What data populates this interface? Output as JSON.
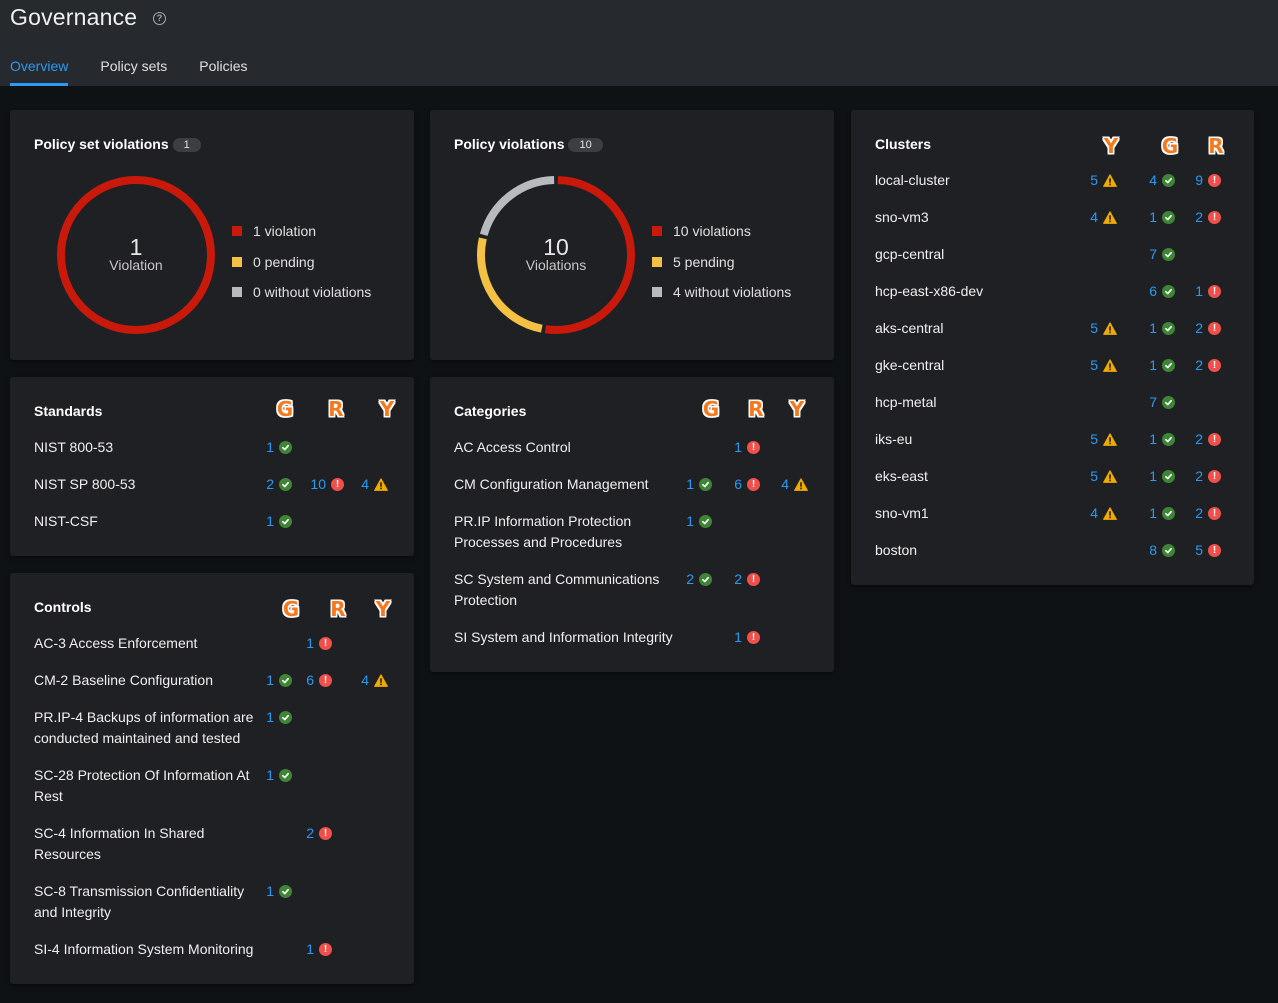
{
  "header": {
    "title": "Governance",
    "help_icon": "question-circle-icon",
    "tabs": [
      {
        "label": "Overview",
        "active": true
      },
      {
        "label": "Policy sets",
        "active": false
      },
      {
        "label": "Policies",
        "active": false
      }
    ]
  },
  "colors": {
    "violation": "#c9190b",
    "pending": "#f4c145",
    "without": "#b8bbbe",
    "link": "#2b9af3",
    "ok": "#3e8635",
    "err": "#f0504b",
    "warn": "#f0ab00"
  },
  "chart_data": [
    {
      "type": "pie",
      "title": "Policy set violations",
      "badge": "1",
      "center_value": "1",
      "center_label": "Violation",
      "categories": [
        "violation",
        "pending",
        "without violations"
      ],
      "values": [
        1,
        0,
        0
      ],
      "legend": [
        "1 violation",
        "0 pending",
        "0 without violations"
      ]
    },
    {
      "type": "pie",
      "title": "Policy violations",
      "badge": "10",
      "center_value": "10",
      "center_label": "Violations",
      "categories": [
        "violations",
        "pending",
        "without violations"
      ],
      "values": [
        10,
        5,
        4
      ],
      "legend": [
        "10 violations",
        "5 pending",
        "4 without violations"
      ]
    }
  ],
  "standards": {
    "title": "Standards",
    "columns": [
      "G",
      "R",
      "Y"
    ],
    "rows": [
      {
        "label": "NIST 800-53",
        "g": "1",
        "r": null,
        "y": null
      },
      {
        "label": "NIST SP 800-53",
        "g": "2",
        "r": "10",
        "y": "4"
      },
      {
        "label": "NIST-CSF",
        "g": "1",
        "r": null,
        "y": null
      }
    ]
  },
  "categories": {
    "title": "Categories",
    "columns": [
      "G",
      "R",
      "Y"
    ],
    "rows": [
      {
        "label": "AC Access Control",
        "g": null,
        "r": "1",
        "y": null
      },
      {
        "label": "CM Configuration Management",
        "g": "1",
        "r": "6",
        "y": "4"
      },
      {
        "label": "PR.IP Information Protection Processes and Procedures",
        "g": "1",
        "r": null,
        "y": null
      },
      {
        "label": "SC System and Communications Protection",
        "g": "2",
        "r": "2",
        "y": null
      },
      {
        "label": "SI System and Information Integrity",
        "g": null,
        "r": "1",
        "y": null
      }
    ]
  },
  "controls": {
    "title": "Controls",
    "columns": [
      "G",
      "R",
      "Y"
    ],
    "rows": [
      {
        "label": "AC-3 Access Enforcement",
        "g": null,
        "r": "1",
        "y": null
      },
      {
        "label": "CM-2 Baseline Configuration",
        "g": "1",
        "r": "6",
        "y": "4"
      },
      {
        "label": "PR.IP-4 Backups of information are conducted maintained and tested",
        "g": "1",
        "r": null,
        "y": null
      },
      {
        "label": "SC-28 Protection Of Information At Rest",
        "g": "1",
        "r": null,
        "y": null
      },
      {
        "label": "SC-4 Information In Shared Resources",
        "g": null,
        "r": "2",
        "y": null
      },
      {
        "label": "SC-8 Transmission Confidentiality and Integrity",
        "g": "1",
        "r": null,
        "y": null
      },
      {
        "label": "SI-4 Information System Monitoring",
        "g": null,
        "r": "1",
        "y": null
      }
    ]
  },
  "clusters": {
    "title": "Clusters",
    "columns": [
      "Y",
      "G",
      "R"
    ],
    "rows": [
      {
        "label": "local-cluster",
        "y": "5",
        "g": "4",
        "r": "9"
      },
      {
        "label": "sno-vm3",
        "y": "4",
        "g": "1",
        "r": "2"
      },
      {
        "label": "gcp-central",
        "y": null,
        "g": "7",
        "r": null
      },
      {
        "label": "hcp-east-x86-dev",
        "y": null,
        "g": "6",
        "r": "1"
      },
      {
        "label": "aks-central",
        "y": "5",
        "g": "1",
        "r": "2"
      },
      {
        "label": "gke-central",
        "y": "5",
        "g": "1",
        "r": "2"
      },
      {
        "label": "hcp-metal",
        "y": null,
        "g": "7",
        "r": null
      },
      {
        "label": "iks-eu",
        "y": "5",
        "g": "1",
        "r": "2"
      },
      {
        "label": "eks-east",
        "y": "5",
        "g": "1",
        "r": "2"
      },
      {
        "label": "sno-vm1",
        "y": "4",
        "g": "1",
        "r": "2"
      },
      {
        "label": "boston",
        "y": null,
        "g": "8",
        "r": "5"
      }
    ]
  }
}
